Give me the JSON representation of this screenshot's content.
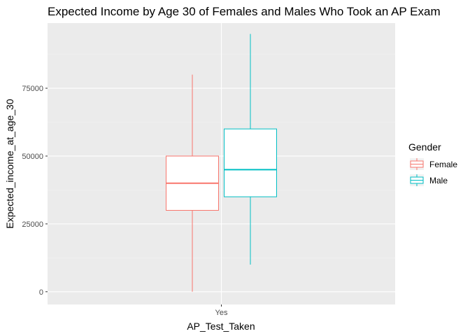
{
  "chart_data": {
    "type": "boxplot",
    "title": "Expected Income by Age 30 of Females and Males Who Took an AP Exam",
    "xlabel": "AP_Test_Taken",
    "ylabel": "Expected_income_at_age_30",
    "categories": [
      "Yes"
    ],
    "y_ticks": [
      0,
      25000,
      50000,
      75000
    ],
    "y_tick_labels": [
      "0",
      "25000",
      "50000",
      "75000"
    ],
    "ylim": [
      -4700,
      99000
    ],
    "grid": true,
    "legend": {
      "title": "Gender",
      "position": "right"
    },
    "series": [
      {
        "name": "Female",
        "color": "#F8766D",
        "category": "Yes",
        "min": 0,
        "q1": 30000,
        "median": 40000,
        "q3": 50000,
        "max": 80000
      },
      {
        "name": "Male",
        "color": "#00BFC4",
        "category": "Yes",
        "min": 10000,
        "q1": 35000,
        "median": 45000,
        "q3": 60000,
        "max": 95000
      }
    ]
  },
  "colors": {
    "panel": "#EBEBEB",
    "grid_major": "#FFFFFF",
    "grid_minor": "#F2F2F2",
    "tick": "#333333"
  }
}
